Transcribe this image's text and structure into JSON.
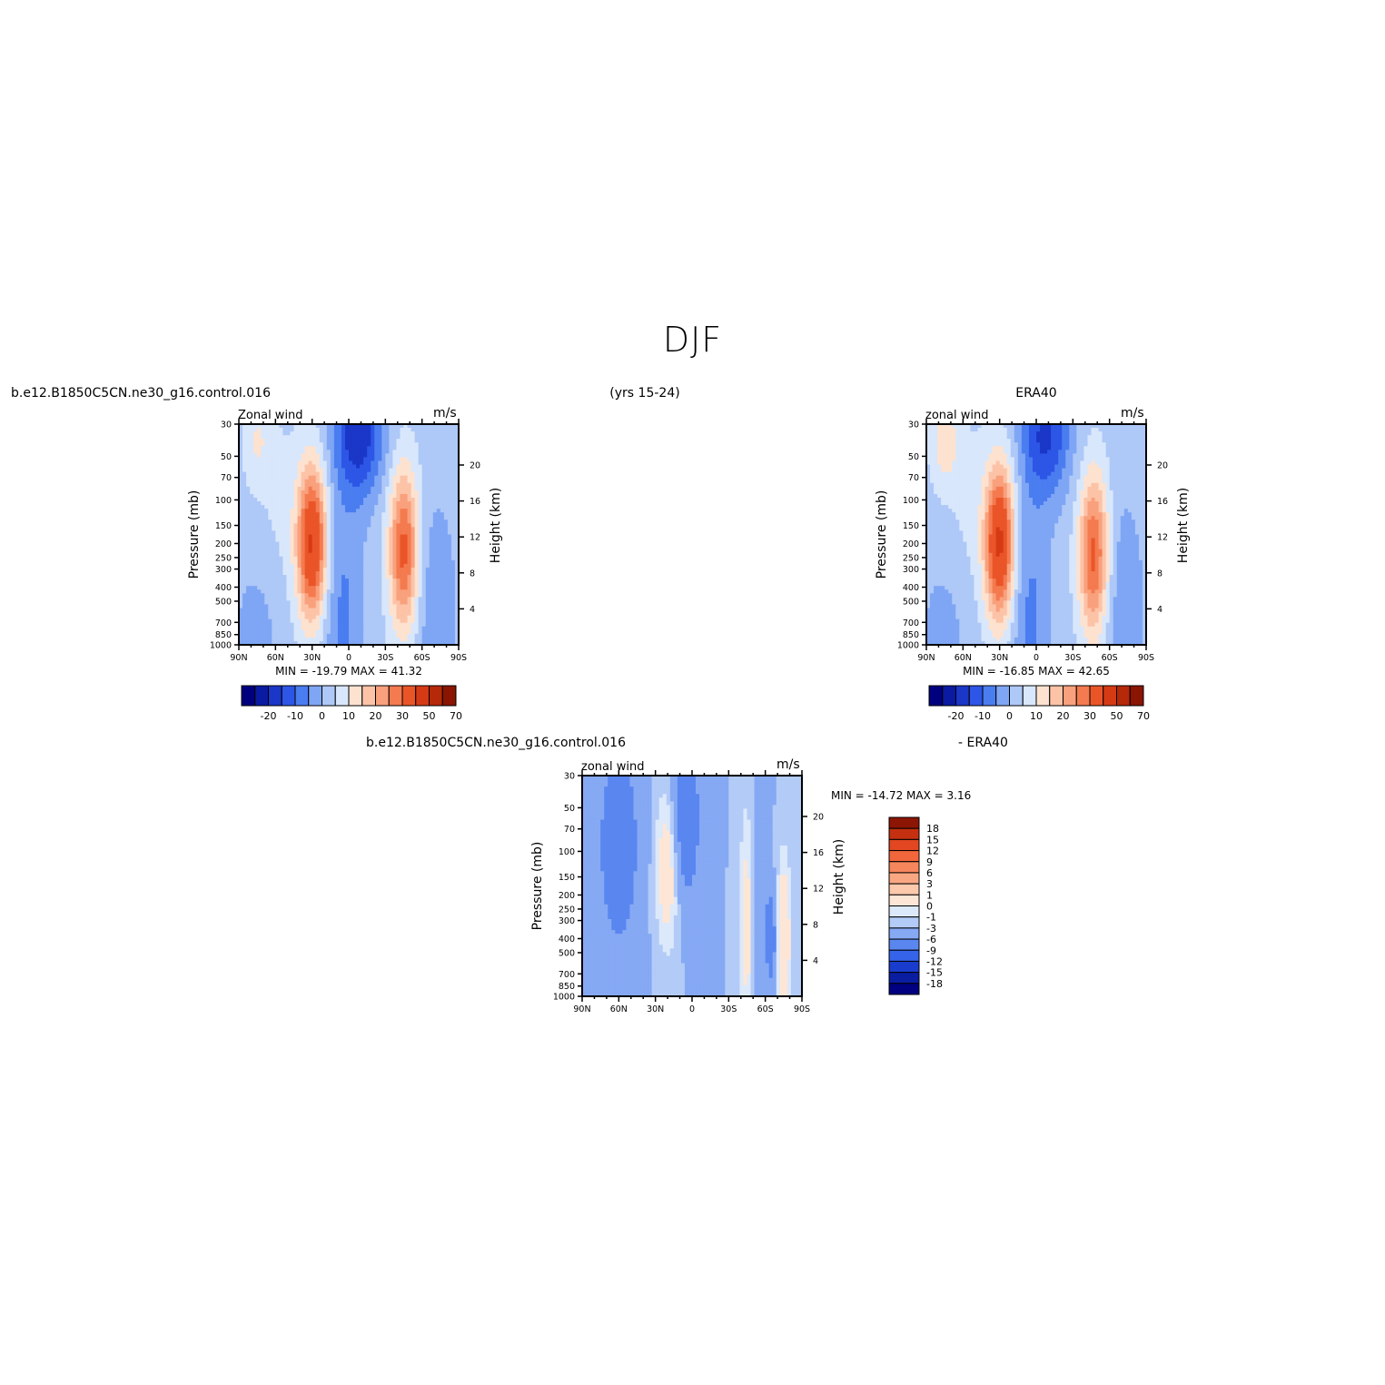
{
  "page_title": "DJF",
  "header": {
    "left": "b.e12.B1850C5CN.ne30_g16.control.016",
    "center": "(yrs 15-24)",
    "right": "ERA40"
  },
  "diff_header": {
    "left": "b.e12.B1850C5CN.ne30_g16.control.016",
    "right": "- ERA40"
  },
  "axes": {
    "ylabel_left": "Pressure (mb)",
    "ylabel_right": "Height (km)",
    "pressure_ticks": [
      "30",
      "50",
      "70",
      "100",
      "150",
      "200",
      "250",
      "300",
      "400",
      "500",
      "700",
      "850",
      "1000"
    ],
    "pressure_values": [
      30,
      50,
      70,
      100,
      150,
      200,
      250,
      300,
      400,
      500,
      700,
      850,
      1000
    ],
    "height_ticks": [
      "20",
      "16",
      "12",
      "8",
      "4"
    ],
    "height_values": [
      20,
      16,
      12,
      8,
      4
    ],
    "lat_ticks": [
      "90N",
      "60N",
      "30N",
      "0",
      "30S",
      "60S",
      "90S"
    ],
    "lat_values": [
      90,
      60,
      30,
      0,
      -30,
      -60,
      -90
    ]
  },
  "colors": {
    "wind_levels": [
      "#00007f",
      "#0a1aa1",
      "#1a37c8",
      "#2d56e6",
      "#4a7df0",
      "#7fa6f5",
      "#aec8f7",
      "#d8e7fb",
      "#fde2d0",
      "#fcc3a7",
      "#f9a07c",
      "#f47a4f",
      "#ea5528",
      "#d53a15",
      "#b52808",
      "#8a1502"
    ],
    "diff_levels": [
      "#000080",
      "#0a1ca0",
      "#1a3ccc",
      "#3563ea",
      "#5a86f0",
      "#86a9f4",
      "#b3cbf7",
      "#dce9fb",
      "#fde6d6",
      "#fcc9ad",
      "#f9a783",
      "#f6865c",
      "#f2663b",
      "#e24721",
      "#c43010",
      "#8d1504"
    ]
  },
  "chart_data": [
    {
      "panel": "model",
      "type": "heatmap",
      "title": "Zonal wind",
      "units": "m/s",
      "stats_label": "MIN = -19.79   MAX =   41.32",
      "min": -19.79,
      "max": 41.32,
      "colorbar_labels": [
        "-20",
        "-10",
        "0",
        "10",
        "20",
        "30",
        "50",
        "70"
      ],
      "features": [
        {
          "kind": "jet",
          "lat": 30,
          "pressure": 200,
          "peak": 41.32
        },
        {
          "kind": "jet",
          "lat": -45,
          "pressure": 220,
          "peak": 32
        },
        {
          "kind": "easterly",
          "lat": -10,
          "pressure": 40,
          "peak": -19.79
        }
      ]
    },
    {
      "panel": "obs",
      "type": "heatmap",
      "title": "zonal wind",
      "units": "m/s",
      "stats_label": "MIN = -16.85   MAX =   42.65",
      "min": -16.85,
      "max": 42.65,
      "colorbar_labels": [
        "-20",
        "-10",
        "0",
        "10",
        "20",
        "30",
        "50",
        "70"
      ],
      "features": [
        {
          "kind": "jet",
          "lat": 30,
          "pressure": 200,
          "peak": 42.65
        },
        {
          "kind": "jet",
          "lat": -48,
          "pressure": 250,
          "peak": 30
        },
        {
          "kind": "easterly",
          "lat": -10,
          "pressure": 40,
          "peak": -16.85
        }
      ]
    },
    {
      "panel": "difference",
      "type": "heatmap",
      "title": "zonal wind",
      "units": "m/s",
      "stats_label": "MIN = -14.72   MAX =    3.16",
      "min": -14.72,
      "max": 3.16,
      "colorbar_labels": [
        "18",
        "15",
        "12",
        "9",
        "6",
        "3",
        "1",
        "0",
        "-1",
        "-3",
        "-6",
        "-9",
        "-12",
        "-15",
        "-18"
      ]
    }
  ]
}
